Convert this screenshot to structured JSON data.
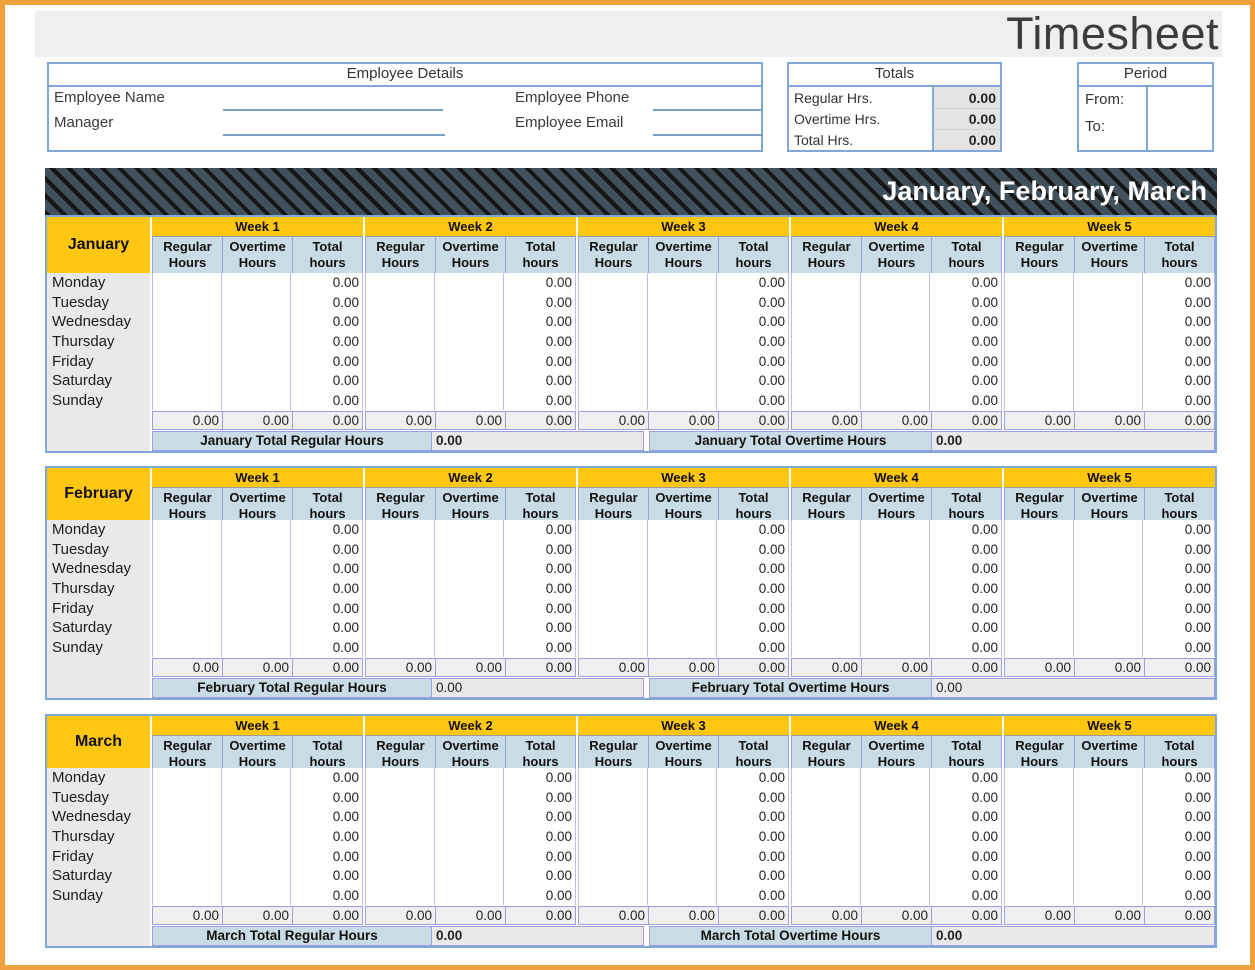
{
  "page": {
    "title": "Timesheet",
    "colors": {
      "frame_orange": "#EFA13E",
      "box_border_blue": "#7FA8D9",
      "header_yellow": "#FFC612",
      "subheader_blue": "#C9DBE5",
      "banner_slate": "#40515B",
      "grid_lavender": "#9D9DE0",
      "shaded_gray": "#E9E9E9"
    }
  },
  "employee_details": {
    "header": "Employee Details",
    "fields": [
      {
        "label": "Employee Name",
        "value": ""
      },
      {
        "label": "Manager",
        "value": ""
      },
      {
        "label": "Employee Phone",
        "value": ""
      },
      {
        "label": "Employee Email",
        "value": ""
      }
    ]
  },
  "totals": {
    "header": "Totals",
    "rows": [
      {
        "label": "Regular Hrs.",
        "value": "0.00"
      },
      {
        "label": "Overtime Hrs.",
        "value": "0.00"
      },
      {
        "label": "Total Hrs.",
        "value": "0.00"
      }
    ]
  },
  "period": {
    "header": "Period",
    "rows": [
      {
        "label": "From:",
        "value": ""
      },
      {
        "label": "To:",
        "value": ""
      }
    ]
  },
  "banner": {
    "label": "January, February, March"
  },
  "table_template": {
    "week_headers": [
      "Week 1",
      "Week 2",
      "Week 3",
      "Week 4",
      "Week 5"
    ],
    "column_headers": [
      [
        "Regular",
        "Hours"
      ],
      [
        "Overtime",
        "Hours"
      ],
      [
        "Total",
        "hours"
      ]
    ],
    "days": [
      "Monday",
      "Tuesday",
      "Wednesday",
      "Thursday",
      "Friday",
      "Saturday",
      "Sunday"
    ]
  },
  "months": [
    {
      "name": "January",
      "day_regular_value": "",
      "day_overtime_value": "",
      "day_total_value": "0.00",
      "week_column_totals": [
        "0.00",
        "0.00",
        "0.00",
        "0.00",
        "0.00",
        "0.00",
        "0.00",
        "0.00",
        "0.00",
        "0.00",
        "0.00",
        "0.00",
        "0.00",
        "0.00",
        "0.00"
      ],
      "summary": {
        "regular_label": "January Total Regular Hours",
        "regular_value": "0.00",
        "overtime_label": "January Total Overtime Hours",
        "overtime_value": "0.00",
        "values_bold": true
      }
    },
    {
      "name": "February",
      "day_regular_value": "",
      "day_overtime_value": "",
      "day_total_value": "0.00",
      "week_column_totals": [
        "0.00",
        "0.00",
        "0.00",
        "0.00",
        "0.00",
        "0.00",
        "0.00",
        "0.00",
        "0.00",
        "0.00",
        "0.00",
        "0.00",
        "0.00",
        "0.00",
        "0.00"
      ],
      "summary": {
        "regular_label": "February Total Regular Hours",
        "regular_value": "0.00",
        "overtime_label": "February Total Overtime Hours",
        "overtime_value": "0.00",
        "values_bold": false
      }
    },
    {
      "name": "March",
      "day_regular_value": "",
      "day_overtime_value": "",
      "day_total_value": "0.00",
      "week_column_totals": [
        "0.00",
        "0.00",
        "0.00",
        "0.00",
        "0.00",
        "0.00",
        "0.00",
        "0.00",
        "0.00",
        "0.00",
        "0.00",
        "0.00",
        "0.00",
        "0.00",
        "0.00"
      ],
      "summary": {
        "regular_label": "March Total Regular Hours",
        "regular_value": "0.00",
        "overtime_label": "March Total Overtime Hours",
        "overtime_value": "0.00",
        "values_bold": true
      }
    }
  ]
}
